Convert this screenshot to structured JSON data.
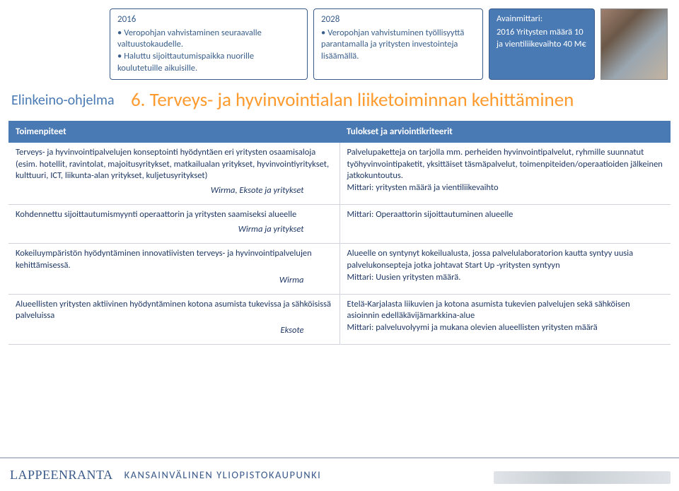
{
  "boxes": {
    "b2016": {
      "year": "2016",
      "items": [
        "Veropohjan vahvistaminen seuraavalle valtuustokaudelle.",
        "Haluttu sijoittautumispaikka nuorille koulutetuille aikuisille."
      ]
    },
    "b2028": {
      "year": "2028",
      "items": [
        "Veropohjan vahvistuminen työllisyyttä parantamalla ja yritysten investointeja lisäämällä."
      ]
    },
    "kpi": {
      "title": "Avainmittari:",
      "body": "2016 Yritysten määrä 10 ja vientiliikevaihto 40 M€"
    }
  },
  "program_label": "Elinkeino-ohjelma",
  "section_title": "6. Terveys- ja hyvinvointialan liiketoiminnan kehittäminen",
  "headers": {
    "left": "Toimenpiteet",
    "right": "Tulokset ja arviointikriteerit"
  },
  "rows": [
    {
      "left": "Terveys- ja hyvinvointipalvelujen konseptointi hyödyntäen eri yritysten osaamisaloja (esim. hotellit, ravintolat, majoitusyritykset, matkailualan yritykset, hyvinvointiyritykset, kulttuuri, ICT, liikunta-alan yritykset, kuljetusyritykset)",
      "left_resp": "Wirma, Eksote ja yritykset",
      "right": "Palvelupaketteja on tarjolla mm. perheiden hyvinvointipalvelut,  ryhmille suunnatut työhyvinvointipaketit, yksittäiset täsmäpalvelut, toimenpiteiden/operaatioiden jälkeinen jatkokuntoutus.\nMittari: yritysten määrä  ja vientiliikevaihto"
    },
    {
      "left": "Kohdennettu sijoittautumismyynti operaattorin ja yritysten saamiseksi alueelle",
      "left_resp": "Wirma ja yritykset",
      "right": "Mittari: Operaattorin sijoittautuminen alueelle"
    },
    {
      "left": "Kokeiluympäristön hyödyntäminen innovatiivisten terveys- ja hyvinvointipalvelujen kehittämisessä.",
      "left_resp": "Wirma",
      "right": "Alueelle on syntynyt kokeilualusta, jossa palvelulaboratorion kautta syntyy uusia palvelukonsepteja jotka johtavat Start Up -yritysten syntyyn\nMittari: Uusien yritysten määrä."
    },
    {
      "left": "Alueellisten yritysten aktiivinen hyödyntäminen kotona asumista tukevissa ja sähköisissä palveluissa",
      "left_resp": "Eksote",
      "right": "Etelä-Karjalasta liikuvien ja kotona asumista tukevien palvelujen sekä sähköisen asioinnin edelläkävijämarkkina-alue\nMittari:  palveluvolyymi ja mukana olevien alueellisten yritysten määrä"
    }
  ],
  "footer": {
    "left": "LAPPEENRANTA",
    "right": "KANSAINVÄLINEN YLIOPISTOKAUPUNKI"
  },
  "colors": {
    "accent_blue": "#4a7ab4",
    "title_orange": "#ff9a2e",
    "text_blue": "#1f3864"
  }
}
